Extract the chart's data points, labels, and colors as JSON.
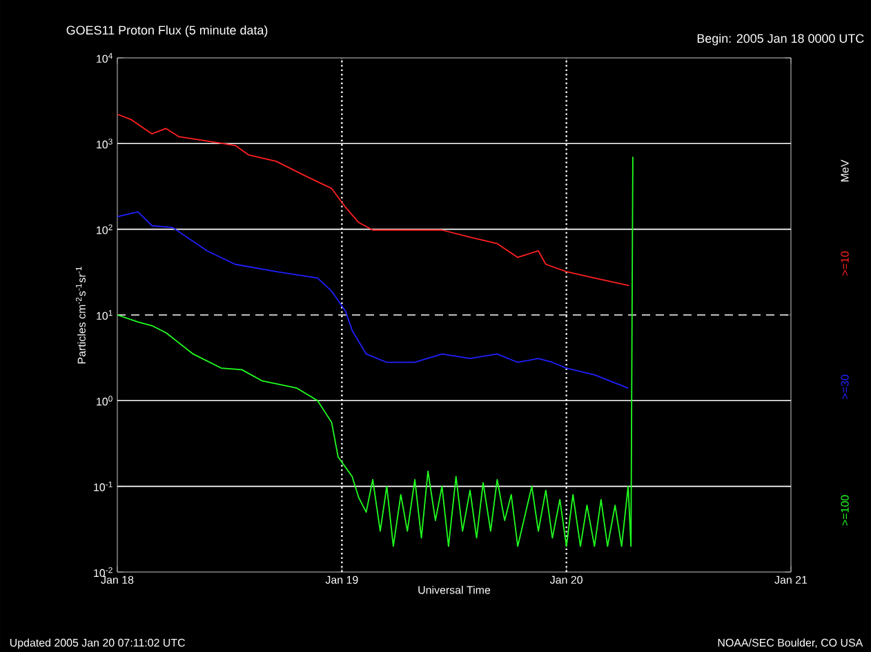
{
  "chart_data": {
    "type": "line",
    "title": "GOES11 Proton Flux (5 minute data)",
    "subtitle": "Begin: 2005 Jan 18 0000 UTC",
    "xlabel": "Universal Time",
    "ylabel": "Particles cm$^{-2}$s$^{-1}$sr$^{-1}$",
    "legend_title": "MeV",
    "log": "y",
    "grid": "y",
    "legend": "right",
    "xlim": [
      "2005-01-18",
      "2005-01-21"
    ],
    "xticks": [
      {
        "value": "2005-01-18",
        "label": "Jan 18"
      },
      {
        "value": "2005-01-19",
        "label": "Jan 19"
      },
      {
        "value": "2005-01-20",
        "label": "Jan 20"
      },
      {
        "value": "2005-01-21",
        "label": "Jan 21"
      }
    ],
    "ylim": [
      0.01,
      10000
    ],
    "yticks": [
      {
        "value": 0.01,
        "label": "10$^{-2}$"
      },
      {
        "value": 0.1,
        "label": "10$^{-1}$"
      },
      {
        "value": 1,
        "label": "10$^{0}$"
      },
      {
        "value": 10,
        "label": "10$^{1}$"
      },
      {
        "value": 100,
        "label": "10$^{2}$"
      },
      {
        "value": 1000,
        "label": "10$^{3}$"
      },
      {
        "value": 10000,
        "label": "10$^{4}$"
      }
    ],
    "series": [
      {
        "name": ">=10",
        "color": "#ff2020",
        "x": [
          "2005-01-18T00:00",
          "2005-01-18T01:30",
          "2005-01-18T03:42",
          "2005-01-18T05:12",
          "2005-01-18T06:36",
          "2005-01-18T09:36",
          "2005-01-18T12:36",
          "2005-01-18T14:00",
          "2005-01-18T17:00",
          "2005-01-18T19:54",
          "2005-01-18T22:54",
          "2005-01-19T00:24",
          "2005-01-19T01:48",
          "2005-01-19T03:18",
          "2005-01-19T07:48",
          "2005-01-19T10:42",
          "2005-01-19T13:42",
          "2005-01-19T16:36",
          "2005-01-19T18:48",
          "2005-01-19T21:00",
          "2005-01-19T21:48",
          "2005-01-20T00:00",
          "2005-01-20T03:00",
          "2005-01-20T06:42"
        ],
        "values": [
          2200,
          1900,
          1300,
          1500,
          1200,
          1070,
          950,
          740,
          620,
          430,
          300,
          180,
          120,
          98,
          98,
          98,
          81,
          68,
          47,
          56,
          39,
          32,
          27,
          22
        ]
      },
      {
        "name": ">=30",
        "color": "#2020ff",
        "x": [
          "2005-01-18T00:00",
          "2005-01-18T02:12",
          "2005-01-18T03:42",
          "2005-01-18T05:54",
          "2005-01-18T09:36",
          "2005-01-18T12:36",
          "2005-01-18T17:00",
          "2005-01-18T21:24",
          "2005-01-18T22:54",
          "2005-01-19T00:24",
          "2005-01-19T01:06",
          "2005-01-19T02:36",
          "2005-01-19T04:48",
          "2005-01-19T07:48",
          "2005-01-19T10:42",
          "2005-01-19T13:42",
          "2005-01-19T16:36",
          "2005-01-19T18:48",
          "2005-01-19T21:00",
          "2005-01-19T22:30",
          "2005-01-20T00:00",
          "2005-01-20T03:00",
          "2005-01-20T06:36"
        ],
        "values": [
          140,
          160,
          110,
          105,
          56,
          39,
          32,
          27,
          19,
          11,
          6.6,
          3.5,
          2.8,
          2.8,
          3.5,
          3.1,
          3.5,
          2.8,
          3.1,
          2.8,
          2.4,
          2.0,
          1.4
        ]
      },
      {
        "name": ">=100",
        "color": "#20ff20",
        "x": [
          "2005-01-18T00:00",
          "2005-01-18T02:12",
          "2005-01-18T03:42",
          "2005-01-18T05:12",
          "2005-01-18T08:06",
          "2005-01-18T11:06",
          "2005-01-18T13:18",
          "2005-01-18T15:30",
          "2005-01-18T19:12",
          "2005-01-18T21:24",
          "2005-01-18T22:54",
          "2005-01-18T23:36",
          "2005-01-19T01:06",
          "2005-01-19T01:48",
          "2005-01-19T02:36",
          "2005-01-19T03:18",
          "2005-01-19T04:06",
          "2005-01-19T04:48",
          "2005-01-19T05:30",
          "2005-01-19T06:18",
          "2005-01-19T07:00",
          "2005-01-19T07:48",
          "2005-01-19T08:30",
          "2005-01-19T09:12",
          "2005-01-19T10:00",
          "2005-01-19T10:42",
          "2005-01-19T11:24",
          "2005-01-19T12:12",
          "2005-01-19T12:54",
          "2005-01-19T13:42",
          "2005-01-19T14:24",
          "2005-01-19T15:06",
          "2005-01-19T15:54",
          "2005-01-19T16:36",
          "2005-01-19T17:24",
          "2005-01-19T18:06",
          "2005-01-19T18:48",
          "2005-01-19T20:18",
          "2005-01-19T21:00",
          "2005-01-19T21:48",
          "2005-01-19T22:30",
          "2005-01-19T23:18",
          "2005-01-20T00:00",
          "2005-01-20T00:42",
          "2005-01-20T01:30",
          "2005-01-20T02:12",
          "2005-01-20T03:00",
          "2005-01-20T03:42",
          "2005-01-20T04:24",
          "2005-01-20T05:12",
          "2005-01-20T05:54",
          "2005-01-20T06:36",
          "2005-01-20T06:54",
          "2005-01-20T07:06"
        ],
        "values": [
          10,
          8.3,
          7.5,
          6.2,
          3.5,
          2.4,
          2.3,
          1.7,
          1.4,
          1.0,
          0.56,
          0.22,
          0.13,
          0.074,
          0.05,
          0.12,
          0.03,
          0.1,
          0.02,
          0.08,
          0.03,
          0.12,
          0.025,
          0.15,
          0.04,
          0.1,
          0.02,
          0.13,
          0.03,
          0.09,
          0.025,
          0.11,
          0.03,
          0.12,
          0.04,
          0.08,
          0.02,
          0.1,
          0.03,
          0.09,
          0.025,
          0.07,
          0.02,
          0.08,
          0.02,
          0.06,
          0.02,
          0.07,
          0.02,
          0.06,
          0.02,
          0.1,
          0.02,
          700
        ]
      }
    ],
    "ref_lines": [
      {
        "axis": "x",
        "value": "2005-01-19",
        "line_style": "dotted",
        "color": "#ffffff"
      },
      {
        "axis": "x",
        "value": "2005-01-20",
        "line_style": "dotted",
        "color": "#ffffff"
      },
      {
        "axis": "y",
        "value": 10,
        "line_style": "dashed",
        "color": "#ffffff"
      }
    ],
    "annotations": [
      "Updated 2005 Jan 20 07:11:02 UTC",
      "NOAA/SEC Boulder, CO USA"
    ]
  }
}
